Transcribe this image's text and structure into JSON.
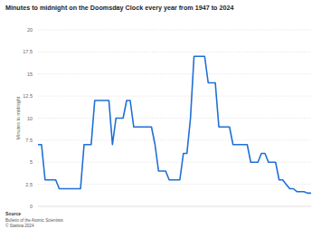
{
  "chart_data": {
    "type": "line",
    "title": "Minutes to midnight on the Doomsday Clock every year from 1947 to 2024",
    "ylabel": "Minutes to midnight",
    "x": [
      1947,
      1948,
      1949,
      1950,
      1951,
      1952,
      1953,
      1954,
      1955,
      1956,
      1957,
      1958,
      1959,
      1960,
      1961,
      1962,
      1963,
      1964,
      1965,
      1966,
      1967,
      1968,
      1969,
      1970,
      1971,
      1972,
      1973,
      1974,
      1975,
      1976,
      1977,
      1978,
      1979,
      1980,
      1981,
      1982,
      1983,
      1984,
      1985,
      1986,
      1987,
      1988,
      1989,
      1990,
      1991,
      1992,
      1993,
      1994,
      1995,
      1996,
      1997,
      1998,
      1999,
      2000,
      2001,
      2002,
      2003,
      2004,
      2005,
      2006,
      2007,
      2008,
      2009,
      2010,
      2011,
      2012,
      2013,
      2014,
      2015,
      2016,
      2017,
      2018,
      2019,
      2020,
      2021,
      2022,
      2023,
      2024
    ],
    "values": [
      7,
      7,
      3,
      3,
      3,
      3,
      2,
      2,
      2,
      2,
      2,
      2,
      2,
      7,
      7,
      7,
      12,
      12,
      12,
      12,
      12,
      7,
      10,
      10,
      10,
      12,
      12,
      9,
      9,
      9,
      9,
      9,
      9,
      7,
      4,
      4,
      4,
      3,
      3,
      3,
      3,
      6,
      6,
      10,
      17,
      17,
      17,
      17,
      14,
      14,
      14,
      9,
      9,
      9,
      9,
      7,
      7,
      7,
      7,
      7,
      5,
      5,
      5,
      6,
      6,
      5,
      5,
      5,
      3,
      3,
      2.5,
      2,
      2,
      1.67,
      1.67,
      1.67,
      1.5,
      1.5
    ],
    "color": "#1f6fd6",
    "xlim": [
      1947,
      2024
    ],
    "ylim": [
      0,
      20
    ],
    "yticks": [
      0,
      2.5,
      5,
      7.5,
      10,
      12.5,
      15,
      17.5,
      20
    ],
    "grid": true,
    "tick_labels": "y",
    "source_title": "Source",
    "source": "Bulletin of the Atomic Scientists",
    "copyright": "© Statista 2024"
  }
}
